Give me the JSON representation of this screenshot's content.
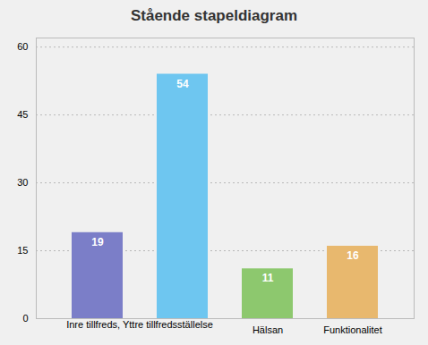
{
  "chart_data": {
    "type": "bar",
    "title": "Stående stapeldiagram",
    "categories": [
      null,
      null,
      "Hälsan",
      "Funktionalitet"
    ],
    "values": [
      19,
      54,
      11,
      16
    ],
    "colors": [
      "#7b7ec8",
      "#6ec6f0",
      "#8dc86e",
      "#e8b86e"
    ],
    "ylim": [
      0,
      62
    ],
    "yticks": [
      0,
      15,
      30,
      45,
      60
    ],
    "grid": true,
    "data_labels": true,
    "annotations": [
      {
        "text": "Inre tillfreds, Yttre tillfredsställelse"
      }
    ]
  }
}
